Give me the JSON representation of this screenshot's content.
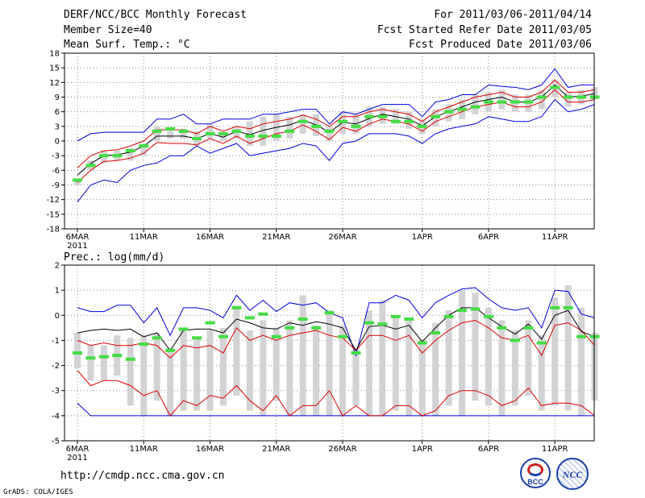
{
  "header": {
    "title": "DERF/NCC/BCC Monthly Forecast",
    "member_size": "Member Size=40",
    "variable": "Mean Surf. Temp.: °C",
    "period": "For 2011/03/06-2011/04/14",
    "started": "Fcst Started Refer Date 2011/03/05",
    "produced": "Fcst Produced Date 2011/03/06"
  },
  "footer": {
    "url": "http://cmdp.ncc.cma.gov.cn",
    "grads": "GrADS: COLA/IGES",
    "logo_bcc": "BCC",
    "logo_ncc": "NCC"
  },
  "colors": {
    "box": "#d3d3d5",
    "median": "#44dd44",
    "mean": "#000000",
    "inner": "#dd0000",
    "outer": "#0000dd",
    "grid": "#888888"
  },
  "chart_data": [
    {
      "type": "box",
      "title": "Mean Surf. Temp.: °C",
      "ylabel": "°C",
      "ylim": [
        -18,
        18
      ],
      "yticks": [
        -18,
        -15,
        -12,
        -9,
        -6,
        -3,
        0,
        3,
        6,
        9,
        12,
        15,
        18
      ],
      "xticks": [
        {
          "day": 1,
          "label": "6MAR"
        },
        {
          "day": 6,
          "label": "11MAR"
        },
        {
          "day": 11,
          "label": "16MAR"
        },
        {
          "day": 16,
          "label": "21MAR"
        },
        {
          "day": 21,
          "label": "26MAR"
        },
        {
          "day": 27,
          "label": "1APR"
        },
        {
          "day": 32,
          "label": "6APR"
        },
        {
          "day": 37,
          "label": "11APR"
        }
      ],
      "year_label": "2011",
      "days": [
        1,
        2,
        3,
        4,
        5,
        6,
        7,
        8,
        9,
        10,
        11,
        12,
        13,
        14,
        15,
        16,
        17,
        18,
        19,
        20,
        21,
        22,
        23,
        24,
        25,
        26,
        27,
        28,
        29,
        30,
        31,
        32,
        33,
        34,
        35,
        36,
        37,
        38,
        39,
        40
      ],
      "median": [
        -8,
        -5,
        -3,
        -3,
        -2,
        -1,
        2,
        2.5,
        2,
        0.5,
        1.5,
        1.5,
        2,
        1,
        1,
        1,
        2,
        4,
        3,
        2,
        4,
        3,
        5,
        5,
        4,
        4,
        3,
        5,
        6,
        6.5,
        7,
        8,
        8,
        8,
        8,
        9,
        11,
        9,
        9,
        9
      ],
      "mean": [
        -7,
        -4.6,
        -3,
        -2.8,
        -2.3,
        -1,
        1,
        1,
        1,
        0.5,
        1.5,
        0.8,
        2,
        1.3,
        2.2,
        2.8,
        3.3,
        4.3,
        3.3,
        1.8,
        3.8,
        3.5,
        4.6,
        5.5,
        5,
        4.5,
        3.1,
        5,
        6,
        7,
        8,
        8.5,
        9,
        8,
        8,
        9,
        11.5,
        9,
        9.2,
        9.7
      ],
      "p_upper": [
        -5.5,
        -3,
        -2,
        -1.8,
        -1,
        0,
        2.3,
        2.3,
        2.3,
        1.5,
        3,
        2,
        3,
        2.5,
        3.5,
        4,
        4.5,
        5.3,
        4.5,
        3,
        5,
        5,
        6,
        6.5,
        6,
        5.5,
        4,
        6,
        7,
        8,
        9,
        9.5,
        10,
        9,
        9,
        10,
        12.5,
        10,
        10,
        10.5
      ],
      "p_lower": [
        -8.5,
        -6,
        -4.2,
        -4,
        -3.5,
        -2.5,
        -0.3,
        -0.5,
        -0.5,
        -0.8,
        0.5,
        -0.5,
        1,
        -0.5,
        0.5,
        1.5,
        2,
        3.3,
        2,
        0.3,
        2.8,
        2,
        3.5,
        4.5,
        4,
        3.5,
        2,
        4,
        5,
        6,
        7,
        7.5,
        8,
        7,
        7,
        8,
        10.5,
        8,
        8,
        8.5
      ],
      "env_upper": [
        0,
        1.5,
        1.8,
        1.8,
        1.8,
        1.8,
        4.5,
        4.5,
        5.5,
        3.5,
        3.5,
        4.5,
        4.5,
        4.5,
        5.5,
        5.5,
        6,
        6.5,
        6.5,
        3.5,
        6,
        5.5,
        6.5,
        7.5,
        7.5,
        7.5,
        5,
        8,
        8.5,
        9.5,
        9.5,
        11.5,
        11.2,
        11,
        10.5,
        11.5,
        14.8,
        11,
        11.5,
        11.5
      ],
      "env_lower": [
        -12.5,
        -9,
        -8,
        -8.5,
        -6,
        -5,
        -4.5,
        -3,
        -3,
        -1,
        -2.5,
        -1.5,
        -0.5,
        -3,
        -2.5,
        -2,
        -1.5,
        -0.5,
        -1,
        -4,
        -0.5,
        0,
        1.5,
        1.5,
        1.5,
        1,
        -0.5,
        1.5,
        2.5,
        3,
        3.5,
        5,
        4.5,
        4,
        4,
        5,
        8.5,
        6,
        6.5,
        7.5
      ],
      "box_top": [
        -8,
        -4,
        -2,
        -2,
        -1.5,
        -1,
        3,
        2.5,
        2.5,
        2,
        3.5,
        1.5,
        3,
        4,
        5,
        5.5,
        5,
        5.5,
        5.5,
        3,
        6,
        5.5,
        7,
        7,
        6.5,
        6,
        4.5,
        6.5,
        7.5,
        8.5,
        9.5,
        10,
        10.5,
        9.5,
        9.5,
        10.5,
        12.5,
        10,
        10.5,
        11
      ],
      "box_bottom": [
        -9,
        -6,
        -4.5,
        -4,
        -4,
        -3,
        0,
        0.5,
        0.5,
        -1,
        0.5,
        0,
        0.5,
        -1,
        -1,
        0,
        0.5,
        1.5,
        1,
        0,
        1.5,
        1.5,
        3,
        3.5,
        3.5,
        2.5,
        1.5,
        3,
        4,
        4.5,
        5.5,
        6,
        6.5,
        6,
        6,
        6.5,
        9,
        7,
        7.5,
        8.5
      ]
    },
    {
      "type": "box",
      "title": "Prec.: log(mm/d)",
      "ylabel": "log(mm/d)",
      "ylim": [
        -5,
        2
      ],
      "yticks": [
        -5,
        -4,
        -3,
        -2,
        -1,
        0,
        1,
        2
      ],
      "xticks": [
        {
          "day": 1,
          "label": "6MAR"
        },
        {
          "day": 6,
          "label": "11MAR"
        },
        {
          "day": 11,
          "label": "16MAR"
        },
        {
          "day": 16,
          "label": "21MAR"
        },
        {
          "day": 21,
          "label": "26MAR"
        },
        {
          "day": 27,
          "label": "1APR"
        },
        {
          "day": 32,
          "label": "6APR"
        },
        {
          "day": 37,
          "label": "11APR"
        }
      ],
      "year_label": "2011",
      "days": [
        1,
        2,
        3,
        4,
        5,
        6,
        7,
        8,
        9,
        10,
        11,
        12,
        13,
        14,
        15,
        16,
        17,
        18,
        19,
        20,
        21,
        22,
        23,
        24,
        25,
        26,
        27,
        28,
        29,
        30,
        31,
        32,
        33,
        34,
        35,
        36,
        37,
        38,
        39,
        40
      ],
      "median": [
        -1.5,
        -1.7,
        -1.65,
        -1.6,
        -1.75,
        -1.15,
        -0.9,
        -1.4,
        -0.55,
        -0.9,
        -0.3,
        -0.85,
        0.3,
        -0.1,
        0.05,
        -0.85,
        -0.5,
        -0.15,
        -0.5,
        0.1,
        -0.85,
        -1.5,
        -0.3,
        -0.35,
        -0.05,
        -0.15,
        -1.1,
        -0.7,
        -0.05,
        0.2,
        0.25,
        -0.05,
        -0.5,
        -1,
        -0.5,
        -1.1,
        0.3,
        0.3,
        -0.85,
        -0.85
      ],
      "mean": [
        -0.7,
        -0.6,
        -0.55,
        -0.6,
        -0.55,
        -0.85,
        -0.7,
        -1.4,
        -0.6,
        -0.55,
        -0.55,
        -0.7,
        -0.15,
        -0.3,
        -0.5,
        -0.55,
        -0.3,
        -0.4,
        -0.25,
        -0.35,
        -0.5,
        -1.4,
        -0.45,
        -0.4,
        -0.55,
        -0.4,
        -1.05,
        -0.5,
        0,
        0.3,
        0.3,
        -0.1,
        -0.45,
        -0.75,
        -0.35,
        -0.95,
        0,
        0.2,
        -0.65,
        -0.85
      ],
      "p_upper": [
        -1,
        -1.2,
        -1.1,
        -1.2,
        -1.2,
        -1.1,
        -1.2,
        -1.7,
        -1.2,
        -1.3,
        -1.2,
        -1.5,
        -0.5,
        -1,
        -0.8,
        -1,
        -0.8,
        -0.7,
        -0.6,
        -0.8,
        -0.9,
        -1.4,
        -0.8,
        -0.8,
        -1,
        -0.8,
        -1.5,
        -1,
        -0.6,
        -0.3,
        -0.2,
        -0.5,
        -0.9,
        -1,
        -0.8,
        -1.6,
        -0.4,
        -0.3,
        -0.6,
        -1.2
      ],
      "p_lower": [
        -2.2,
        -2.8,
        -2.6,
        -2.6,
        -2.8,
        -3.2,
        -3,
        -4,
        -3.4,
        -3.6,
        -3.2,
        -3.3,
        -2.8,
        -3.4,
        -3.8,
        -3.2,
        -4,
        -3.6,
        -3.6,
        -3,
        -4,
        -3.6,
        -4,
        -4,
        -3.6,
        -3.6,
        -4,
        -3.8,
        -3.2,
        -3,
        -3,
        -3.2,
        -3.6,
        -3.4,
        -2.9,
        -3.6,
        -3.5,
        -3.5,
        -3.6,
        -4
      ],
      "env_upper": [
        0.3,
        0.15,
        0.15,
        0.4,
        0.4,
        -0.3,
        0.3,
        -0.8,
        0.3,
        0.3,
        0.2,
        -0.1,
        0.8,
        0.2,
        0.6,
        0.15,
        0.5,
        0.4,
        0.5,
        0.1,
        -0.1,
        -1.6,
        0.5,
        0.5,
        0.8,
        0.6,
        -0.1,
        0.5,
        0.8,
        1.05,
        1.1,
        0.65,
        0.3,
        0.2,
        0.3,
        -0.5,
        1,
        0.95,
        0.05,
        -0.1
      ],
      "env_lower": [
        -3.5,
        -4,
        -4,
        -4,
        -4,
        -4,
        -4,
        -4,
        -4,
        -4,
        -4,
        -4,
        -4,
        -4,
        -4,
        -4,
        -4,
        -4,
        -4,
        -4,
        -4,
        -4,
        -4,
        -4,
        -4,
        -4,
        -4,
        -4,
        -4,
        -4,
        -4,
        -4,
        -4,
        -4,
        -4,
        -4,
        -4,
        -4,
        -4,
        -4
      ],
      "box_top": [
        -0.7,
        -1.2,
        -1.2,
        -0.8,
        -0.9,
        -0.8,
        -0.7,
        -1.3,
        -0.5,
        -0.9,
        -0.6,
        -0.5,
        0.4,
        -0.6,
        -0.2,
        -0.5,
        -0.2,
        0.8,
        -0.4,
        0.2,
        -0.4,
        -1.4,
        0.2,
        0.6,
        -0.1,
        -0.2,
        -1,
        -0.3,
        0.2,
        1,
        0.9,
        0.3,
        -0.2,
        -0.6,
        -0.2,
        -0.8,
        0.7,
        1.2,
        0.3,
        -0.7
      ],
      "box_bottom": [
        -2.1,
        -2.6,
        -2.6,
        -2.4,
        -3.6,
        -4,
        -3.4,
        -4,
        -3.8,
        -3.8,
        -3.8,
        -3.6,
        -3.2,
        -3.8,
        -4,
        -3.4,
        -4,
        -4,
        -4,
        -4,
        -4,
        -3.6,
        -4,
        -4,
        -3.8,
        -4,
        -4,
        -4,
        -3.6,
        -4,
        -3.4,
        -3.6,
        -4,
        -3.6,
        -3.2,
        -3.8,
        -3.6,
        -3.8,
        -4,
        -3.4
      ]
    }
  ]
}
